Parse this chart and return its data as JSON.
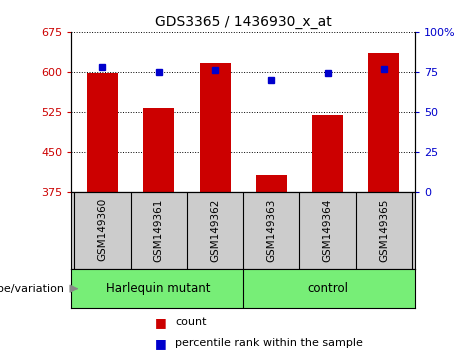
{
  "title": "GDS3365 / 1436930_x_at",
  "samples": [
    "GSM149360",
    "GSM149361",
    "GSM149362",
    "GSM149363",
    "GSM149364",
    "GSM149365"
  ],
  "bar_values": [
    597,
    533,
    617,
    407,
    519,
    635
  ],
  "percentile_values": [
    78,
    75,
    76,
    70,
    74,
    77
  ],
  "bar_bottom": 375,
  "ylim_left": [
    375,
    675
  ],
  "ylim_right": [
    0,
    100
  ],
  "yticks_left": [
    375,
    450,
    525,
    600,
    675
  ],
  "yticks_right": [
    0,
    25,
    50,
    75,
    100
  ],
  "bar_color": "#cc0000",
  "dot_color": "#0000cc",
  "group1_label": "Harlequin mutant",
  "group2_label": "control",
  "group1_indices": [
    0,
    1,
    2
  ],
  "group2_indices": [
    3,
    4,
    5
  ],
  "group_bg_color": "#77ee77",
  "tick_label_area_color": "#cccccc",
  "legend_count_label": "count",
  "legend_pct_label": "percentile rank within the sample",
  "genotype_label": "genotype/variation",
  "bar_width": 0.55,
  "xlim": [
    -0.55,
    5.55
  ]
}
